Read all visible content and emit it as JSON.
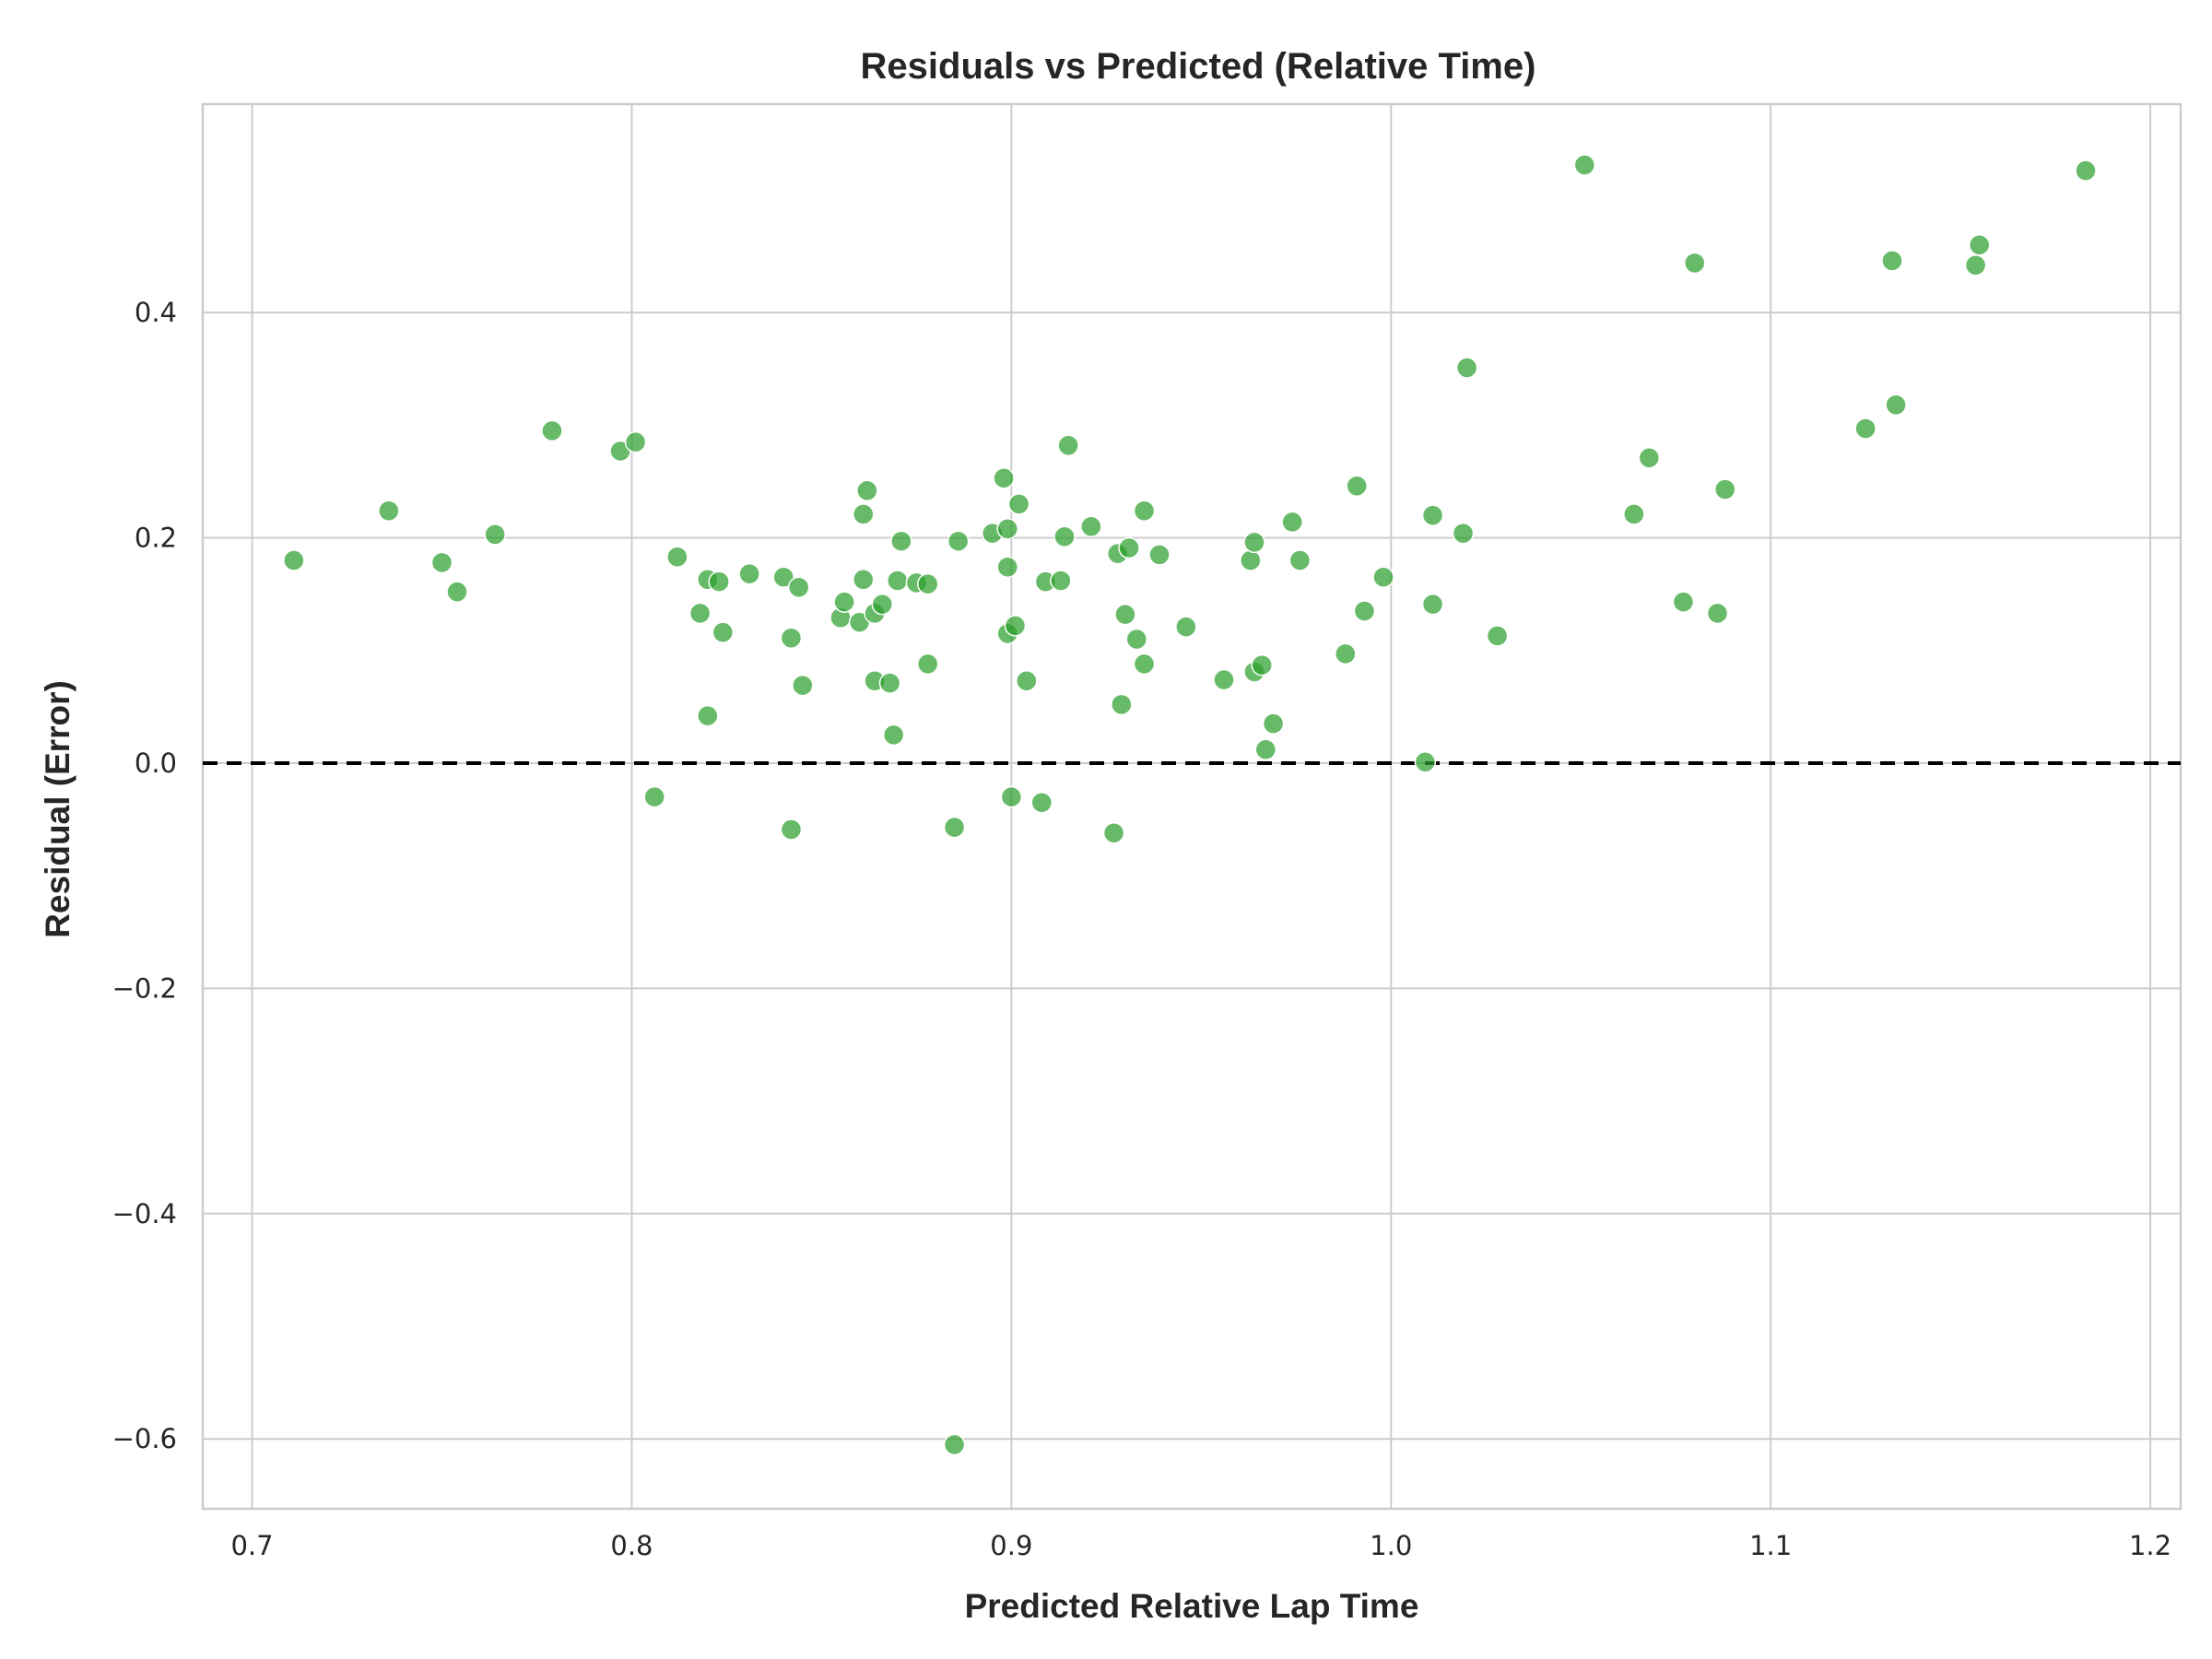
{
  "chart_data": {
    "type": "scatter",
    "title": "Residuals vs Predicted (Relative Time)",
    "xlabel": "Predicted Relative Lap Time",
    "ylabel": "Residual (Error)",
    "xlim": [
      0.687,
      1.208
    ],
    "ylim": [
      -0.662,
      0.585
    ],
    "xticks": [
      0.7,
      0.8,
      0.9,
      1.0,
      1.1,
      1.2
    ],
    "xtick_labels": [
      "0.7",
      "0.8",
      "0.9",
      "1.0",
      "1.1",
      "1.2"
    ],
    "yticks": [
      -0.6,
      -0.4,
      -0.2,
      0.0,
      0.2,
      0.4
    ],
    "ytick_labels": [
      "−0.6",
      "−0.4",
      "−0.2",
      "0.0",
      "0.2",
      "0.4"
    ],
    "grid": true,
    "reference_line": {
      "y": 0.0,
      "style": "dashed",
      "color": "#000000"
    },
    "marker_color": "#2ca02c",
    "points": [
      {
        "x": 0.711,
        "y": 0.18
      },
      {
        "x": 0.736,
        "y": 0.224
      },
      {
        "x": 0.75,
        "y": 0.178
      },
      {
        "x": 0.754,
        "y": 0.152
      },
      {
        "x": 0.764,
        "y": 0.203
      },
      {
        "x": 0.779,
        "y": 0.295
      },
      {
        "x": 0.797,
        "y": 0.277
      },
      {
        "x": 0.801,
        "y": 0.285
      },
      {
        "x": 0.806,
        "y": -0.03
      },
      {
        "x": 0.812,
        "y": 0.183
      },
      {
        "x": 0.818,
        "y": 0.133
      },
      {
        "x": 0.82,
        "y": 0.163
      },
      {
        "x": 0.82,
        "y": 0.042
      },
      {
        "x": 0.823,
        "y": 0.161
      },
      {
        "x": 0.824,
        "y": 0.116
      },
      {
        "x": 0.831,
        "y": 0.168
      },
      {
        "x": 0.84,
        "y": 0.165
      },
      {
        "x": 0.842,
        "y": 0.111
      },
      {
        "x": 0.842,
        "y": -0.059
      },
      {
        "x": 0.844,
        "y": 0.156
      },
      {
        "x": 0.845,
        "y": 0.069
      },
      {
        "x": 0.855,
        "y": 0.129
      },
      {
        "x": 0.856,
        "y": 0.143
      },
      {
        "x": 0.86,
        "y": 0.125
      },
      {
        "x": 0.861,
        "y": 0.163
      },
      {
        "x": 0.861,
        "y": 0.221
      },
      {
        "x": 0.862,
        "y": 0.242
      },
      {
        "x": 0.864,
        "y": 0.133
      },
      {
        "x": 0.864,
        "y": 0.073
      },
      {
        "x": 0.866,
        "y": 0.141
      },
      {
        "x": 0.868,
        "y": 0.071
      },
      {
        "x": 0.869,
        "y": 0.025
      },
      {
        "x": 0.87,
        "y": 0.162
      },
      {
        "x": 0.871,
        "y": 0.197
      },
      {
        "x": 0.875,
        "y": 0.16
      },
      {
        "x": 0.878,
        "y": 0.159
      },
      {
        "x": 0.878,
        "y": 0.088
      },
      {
        "x": 0.885,
        "y": -0.057
      },
      {
        "x": 0.885,
        "y": -0.605
      },
      {
        "x": 0.886,
        "y": 0.197
      },
      {
        "x": 0.895,
        "y": 0.204
      },
      {
        "x": 0.898,
        "y": 0.253
      },
      {
        "x": 0.899,
        "y": 0.174
      },
      {
        "x": 0.899,
        "y": 0.115
      },
      {
        "x": 0.899,
        "y": 0.208
      },
      {
        "x": 0.9,
        "y": -0.03
      },
      {
        "x": 0.901,
        "y": 0.122
      },
      {
        "x": 0.902,
        "y": 0.23
      },
      {
        "x": 0.904,
        "y": 0.073
      },
      {
        "x": 0.908,
        "y": -0.035
      },
      {
        "x": 0.909,
        "y": 0.161
      },
      {
        "x": 0.913,
        "y": 0.162
      },
      {
        "x": 0.914,
        "y": 0.201
      },
      {
        "x": 0.915,
        "y": 0.282
      },
      {
        "x": 0.921,
        "y": 0.21
      },
      {
        "x": 0.927,
        "y": -0.062
      },
      {
        "x": 0.928,
        "y": 0.186
      },
      {
        "x": 0.929,
        "y": 0.052
      },
      {
        "x": 0.93,
        "y": 0.132
      },
      {
        "x": 0.931,
        "y": 0.191
      },
      {
        "x": 0.933,
        "y": 0.11
      },
      {
        "x": 0.935,
        "y": 0.224
      },
      {
        "x": 0.935,
        "y": 0.088
      },
      {
        "x": 0.939,
        "y": 0.185
      },
      {
        "x": 0.946,
        "y": 0.121
      },
      {
        "x": 0.956,
        "y": 0.074
      },
      {
        "x": 0.963,
        "y": 0.18
      },
      {
        "x": 0.964,
        "y": 0.196
      },
      {
        "x": 0.964,
        "y": 0.081
      },
      {
        "x": 0.966,
        "y": 0.087
      },
      {
        "x": 0.967,
        "y": 0.012
      },
      {
        "x": 0.969,
        "y": 0.035
      },
      {
        "x": 0.974,
        "y": 0.214
      },
      {
        "x": 0.976,
        "y": 0.18
      },
      {
        "x": 0.988,
        "y": 0.097
      },
      {
        "x": 0.991,
        "y": 0.246
      },
      {
        "x": 0.993,
        "y": 0.135
      },
      {
        "x": 0.998,
        "y": 0.165
      },
      {
        "x": 1.009,
        "y": 0.001
      },
      {
        "x": 1.011,
        "y": 0.22
      },
      {
        "x": 1.011,
        "y": 0.141
      },
      {
        "x": 1.019,
        "y": 0.204
      },
      {
        "x": 1.02,
        "y": 0.351
      },
      {
        "x": 1.028,
        "y": 0.113
      },
      {
        "x": 1.051,
        "y": 0.531
      },
      {
        "x": 1.064,
        "y": 0.221
      },
      {
        "x": 1.068,
        "y": 0.271
      },
      {
        "x": 1.077,
        "y": 0.143
      },
      {
        "x": 1.08,
        "y": 0.444
      },
      {
        "x": 1.086,
        "y": 0.133
      },
      {
        "x": 1.088,
        "y": 0.243
      },
      {
        "x": 1.125,
        "y": 0.297
      },
      {
        "x": 1.132,
        "y": 0.446
      },
      {
        "x": 1.133,
        "y": 0.318
      },
      {
        "x": 1.154,
        "y": 0.442
      },
      {
        "x": 1.155,
        "y": 0.46
      },
      {
        "x": 1.183,
        "y": 0.526
      }
    ]
  }
}
